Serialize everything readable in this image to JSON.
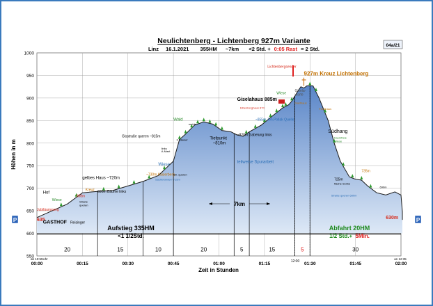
{
  "chart_data": {
    "type": "area",
    "title": "Neulichtenberg - Lichtenberg 927m Variante",
    "subtitle_parts": {
      "place": "Linz",
      "date": "16.1.2021",
      "hm": "355HM",
      "km": "~7km",
      "time": "<2 Std. +",
      "rest": "0:05 Rast",
      "total": "= 2 Std."
    },
    "badge": "04a/21",
    "xlabel": "Zeit in Stunden",
    "ylabel": "Höhen in m",
    "ylim": [
      550,
      1000
    ],
    "xlim": [
      0,
      120
    ],
    "y_ticks": [
      550,
      600,
      650,
      700,
      750,
      800,
      850,
      900,
      950,
      1000
    ],
    "x_ticks": [
      {
        "t": 0,
        "label": "00:00"
      },
      {
        "t": 15,
        "label": "00:15"
      },
      {
        "t": 30,
        "label": "00:30"
      },
      {
        "t": 45,
        "label": "00:45"
      },
      {
        "t": 60,
        "label": "01:00"
      },
      {
        "t": 75,
        "label": "01:15"
      },
      {
        "t": 90,
        "label": "01:30"
      },
      {
        "t": 105,
        "label": "01:45"
      },
      {
        "t": 120,
        "label": "02:00"
      }
    ],
    "profile": [
      [
        0,
        635
      ],
      [
        10,
        665
      ],
      [
        15,
        690
      ],
      [
        20,
        693
      ],
      [
        25,
        695
      ],
      [
        30,
        705
      ],
      [
        35,
        715
      ],
      [
        40,
        728
      ],
      [
        45,
        760
      ],
      [
        47,
        808
      ],
      [
        49,
        820
      ],
      [
        52,
        840
      ],
      [
        55,
        847
      ],
      [
        58,
        842
      ],
      [
        61,
        828
      ],
      [
        64,
        825
      ],
      [
        66,
        818
      ],
      [
        68,
        815
      ],
      [
        70,
        825
      ],
      [
        74,
        840
      ],
      [
        78,
        862
      ],
      [
        81,
        878
      ],
      [
        83,
        885
      ],
      [
        84,
        893
      ],
      [
        86,
        915
      ],
      [
        87,
        925
      ],
      [
        88,
        922
      ],
      [
        89,
        927
      ],
      [
        91,
        927
      ],
      [
        93,
        900
      ],
      [
        96,
        850
      ],
      [
        98,
        800
      ],
      [
        100,
        760
      ],
      [
        103,
        725
      ],
      [
        105,
        720
      ],
      [
        107,
        718
      ],
      [
        109,
        705
      ],
      [
        112,
        690
      ],
      [
        115,
        685
      ],
      [
        118,
        692
      ],
      [
        120,
        685
      ],
      [
        123,
        648
      ],
      [
        126,
        630
      ]
    ],
    "segments": [
      {
        "t0": 0,
        "t1": 20,
        "label": "20"
      },
      {
        "t0": 20,
        "t1": 35,
        "label": "15"
      },
      {
        "t0": 35,
        "t1": 45,
        "label": "10"
      },
      {
        "t0": 45,
        "t1": 65,
        "label": "20"
      },
      {
        "t0": 65,
        "t1": 70,
        "label": "5"
      },
      {
        "t0": 70,
        "t1": 85,
        "label": "15"
      },
      {
        "t0": 85,
        "t1": 90,
        "label": "5",
        "rest": true
      },
      {
        "t0": 90,
        "t1": 120,
        "label": "30"
      }
    ],
    "annotations": [
      {
        "t": 0,
        "h": 650,
        "text": "Jubiläumsweg",
        "color": "#d62a1a",
        "size": 5
      },
      {
        "t": 0,
        "h": 627,
        "text": "635",
        "color": "#d62a1a",
        "size": 7,
        "bold": true
      },
      {
        "t": 2,
        "h": 622,
        "text": "GASTHOF",
        "color": "#000000",
        "size": 7,
        "bold": true
      },
      {
        "t": 11,
        "h": 622,
        "text": "Reisinger",
        "color": "#000000",
        "size": 5
      },
      {
        "t": 2,
        "h": 688,
        "text": "Hof",
        "color": "#000000",
        "size": 6
      },
      {
        "t": 5,
        "h": 672,
        "text": "Wiese",
        "color": "#2a8a2a",
        "size": 5
      },
      {
        "t": 16,
        "h": 694,
        "text": "Kreuz",
        "color": "#c27000",
        "size": 5
      },
      {
        "t": 13,
        "h": 680,
        "text": "688m",
        "color": "#d62a1a",
        "size": 5
      },
      {
        "t": 14,
        "h": 668,
        "text": "Straße",
        "color": "#000000",
        "size": 4
      },
      {
        "t": 14,
        "h": 660,
        "text": "queren",
        "color": "#000000",
        "size": 4
      },
      {
        "t": 20,
        "h": 690,
        "text": "695m Bäume links",
        "color": "#000000",
        "size": 5
      },
      {
        "t": 15,
        "h": 720,
        "text": "gelbes Haus ~720m",
        "color": "#000000",
        "size": 6
      },
      {
        "t": 36,
        "h": 728,
        "text": "~730m Kaiserberg",
        "color": "#c27000",
        "size": 5
      },
      {
        "t": 45,
        "h": 728,
        "text": "Str. queren",
        "color": "#000000",
        "size": 4
      },
      {
        "t": 39,
        "h": 717,
        "text": "Sachbründel? 715m",
        "color": "#2a6eb5",
        "size": 4
      },
      {
        "t": 40,
        "h": 750,
        "text": "Wiese",
        "color": "#2a6eb5",
        "size": 6
      },
      {
        "t": 41,
        "h": 786,
        "text": "links",
        "color": "#000000",
        "size": 4
      },
      {
        "t": 41,
        "h": 780,
        "text": "A-Mast",
        "color": "#000000",
        "size": 4
      },
      {
        "t": 28,
        "h": 813,
        "text": "Gisstraße queren ~815m",
        "color": "#000000",
        "size": 5
      },
      {
        "t": 46,
        "h": 805,
        "text": "3 Häuser",
        "color": "#000000",
        "size": 4
      },
      {
        "t": 45,
        "h": 850,
        "text": "Wald",
        "color": "#2a8a2a",
        "size": 6
      },
      {
        "t": 50,
        "h": 840,
        "text": "rechts",
        "color": "#000000",
        "size": 4
      },
      {
        "t": 57,
        "h": 808,
        "text": "Tiefpunkt",
        "color": "#000000",
        "size": 6
      },
      {
        "t": 58,
        "h": 797,
        "text": "~810m",
        "color": "#000000",
        "size": 6
      },
      {
        "t": 66,
        "h": 816,
        "text": "~820m Gabelung links",
        "color": "#000000",
        "size": 5
      },
      {
        "t": 66,
        "h": 756,
        "text": "teilweise Spurarbeit",
        "color": "#2a6eb5",
        "size": 6
      },
      {
        "t": 72,
        "h": 850,
        "text": "~855m Joh.Pollak Quelle",
        "color": "#2a6eb5",
        "size": 5
      },
      {
        "t": 66,
        "h": 894,
        "text": "Giselahaus 885m",
        "color": "#000000",
        "size": 7,
        "bold": true
      },
      {
        "t": 67,
        "h": 876,
        "text": "Eibenberghaus 870",
        "color": "#d62a1a",
        "size": 4
      },
      {
        "t": 79,
        "h": 908,
        "text": "Wiese",
        "color": "#2a8a2a",
        "size": 5
      },
      {
        "t": 76,
        "h": 967,
        "text": "Lichtenbergsender",
        "color": "#d62a1a",
        "size": 5
      },
      {
        "t": 88,
        "h": 950,
        "text": "927m Kreuz Lichtenberg",
        "color": "#c27000",
        "size": 8,
        "bold": true
      },
      {
        "t": 85,
        "h": 914,
        "text": "Gisela-",
        "color": "#555555",
        "size": 5
      },
      {
        "t": 85,
        "h": 905,
        "text": "warte",
        "color": "#555555",
        "size": 5
      },
      {
        "t": 85,
        "h": 887,
        "text": "Gasthaus",
        "color": "#c27000",
        "size": 4
      },
      {
        "t": 93,
        "h": 874,
        "text": "Forsthaus",
        "color": "#c27000",
        "size": 4
      },
      {
        "t": 96,
        "h": 823,
        "text": "Südhang",
        "color": "#000000",
        "size": 7
      },
      {
        "t": 98,
        "h": 810,
        "text": "baumfreie",
        "color": "#2a8a2a",
        "size": 4
      },
      {
        "t": 98,
        "h": 802,
        "text": "Wiese",
        "color": "#2a8a2a",
        "size": 4
      },
      {
        "t": 107,
        "h": 736,
        "text": "735m",
        "color": "#c27000",
        "size": 5
      },
      {
        "t": 98,
        "h": 717,
        "text": "725m",
        "color": "#000000",
        "size": 5
      },
      {
        "t": 98,
        "h": 708,
        "text": "flache Senke",
        "color": "#000000",
        "size": 4
      },
      {
        "t": 113,
        "h": 700,
        "text": "690m",
        "color": "#000000",
        "size": 4
      },
      {
        "t": 97,
        "h": 682,
        "text": "Straße queren 680m",
        "color": "#2a6eb5",
        "size": 4
      },
      {
        "t": 115,
        "h": 632,
        "text": "630m",
        "color": "#d62a1a",
        "size": 7,
        "bold": true
      },
      {
        "t": 66,
        "h": 608,
        "text": "teilweise Spurarbeit",
        "color": "#2a6eb5",
        "size": 0
      }
    ],
    "footer_labels": {
      "left_start": "ab 10:55Uhr",
      "rest_time": "12:00",
      "right_end": "an 12:35"
    },
    "ascent": {
      "line1": "Aufstieg 335HM",
      "line2": "<1 1/2Std."
    },
    "descent": {
      "line1": "Abfahrt 20HM",
      "line2_a": "1/2 Std.+",
      "line2_b": "5Min."
    },
    "distance_label": "7km",
    "parking": "P",
    "colors": {
      "fill_top": "#5a86c8",
      "fill_bottom": "#dde8f6",
      "profile_line": "#1a1a1a",
      "grid": "#9b9b9b",
      "plot_bg": "#ffffff",
      "green_text": "#1e8a1e",
      "red_text": "#e02020",
      "orange_text": "#c96a00"
    }
  }
}
